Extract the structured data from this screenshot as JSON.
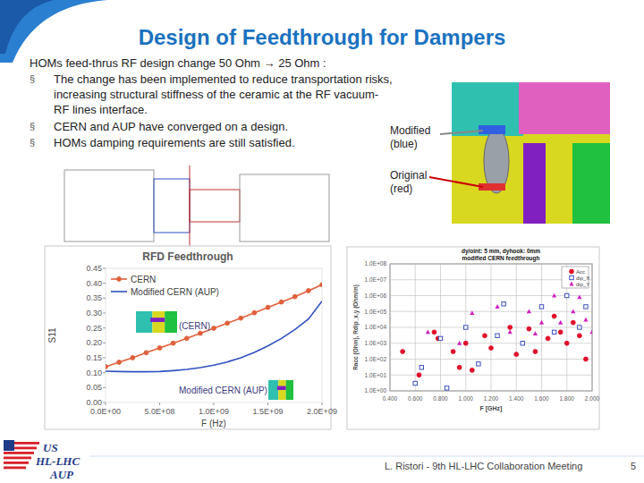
{
  "slide": {
    "title": "Design of Feedthrough for Dampers",
    "intro": "HOMs feed-thrus RF design change 50 Ohm → 25 Ohm :",
    "bullet": "§",
    "bullets": [
      "The change has been implemented to reduce transportation risks, increasing structural stiffness of the ceramic at the RF vacuum-RF lines interface.",
      "CERN and AUP have converged on a design.",
      "HOMs damping requirements are still satisfied."
    ],
    "figure_labels": [
      [
        "Modified",
        "(blue)"
      ],
      [
        "Original",
        "(red)"
      ]
    ],
    "logo": [
      "US",
      "HL-LHC",
      "AUP"
    ],
    "footer": "L. Ristori - 9th HL-LHC Collaboration Meeting",
    "page": 5
  },
  "chart_data": [
    {
      "type": "line",
      "title": "RFD Feedthrough",
      "x_label": "F (Hz)",
      "y_label": "S11",
      "x": [
        0,
        125000000,
        250000000,
        375000000,
        500000000,
        625000000,
        750000000,
        875000000,
        1000000000,
        1125000000,
        1250000000,
        1375000000,
        1500000000,
        1625000000,
        1750000000,
        1875000000,
        2000000000
      ],
      "xlim": [
        0,
        2000000000
      ],
      "xticks": [
        {
          "value": 0,
          "label": "0.0E+00"
        },
        {
          "value": 500000000,
          "label": "5.0E+08"
        },
        {
          "value": 1000000000,
          "label": "1.0E+09"
        },
        {
          "value": 1500000000,
          "label": "1.5E+09"
        },
        {
          "value": 2000000000,
          "label": "2.0E+09"
        }
      ],
      "ylim": [
        0,
        0.45
      ],
      "yticks": [
        {
          "value": 0,
          "label": "0.00"
        },
        {
          "value": 0.05,
          "label": "0.05"
        },
        {
          "value": 0.1,
          "label": "0.10"
        },
        {
          "value": 0.15,
          "label": "0.15"
        },
        {
          "value": 0.2,
          "label": "0.20"
        },
        {
          "value": 0.25,
          "label": "0.25"
        },
        {
          "value": 0.3,
          "label": "0.30"
        },
        {
          "value": 0.35,
          "label": "0.35"
        },
        {
          "value": 0.4,
          "label": "0.40"
        },
        {
          "value": 0.45,
          "label": "0.45"
        }
      ],
      "grid": false,
      "legend": "top-left",
      "series": [
        {
          "name": "CERN",
          "color": "#e0603c",
          "marker": "circle",
          "values": [
            0.12,
            0.135,
            0.15,
            0.167,
            0.183,
            0.199,
            0.215,
            0.232,
            0.249,
            0.266,
            0.283,
            0.301,
            0.319,
            0.337,
            0.355,
            0.375,
            0.395
          ]
        },
        {
          "name": "Modified CERN (AUP)",
          "color": "#3050c0",
          "marker": "none",
          "values": [
            0.105,
            0.104,
            0.103,
            0.103,
            0.104,
            0.107,
            0.111,
            0.117,
            0.125,
            0.136,
            0.15,
            0.168,
            0.19,
            0.215,
            0.245,
            0.28,
            0.34
          ]
        }
      ],
      "annotations": [
        "(CERN)",
        "Modified CERN (AUP)"
      ]
    },
    {
      "type": "scatter",
      "title": "dy/oint: 5 mm, dyhook: 0mm",
      "subtitle": "modified CERN feedthrough",
      "x_label": "F [GHz]",
      "y_label": "Racc (Ohm), Rdip_x,y (Ohm/m)",
      "log": "y",
      "grid": true,
      "legend": "top-right",
      "xlim": [
        0.4,
        2.0
      ],
      "xticks": [
        {
          "value": 0.4,
          "label": "0.400"
        },
        {
          "value": 0.6,
          "label": "0.600"
        },
        {
          "value": 0.8,
          "label": "0.800"
        },
        {
          "value": 1.0,
          "label": "1.000"
        },
        {
          "value": 1.2,
          "label": "1.200"
        },
        {
          "value": 1.4,
          "label": "1.400"
        },
        {
          "value": 1.6,
          "label": "1.600"
        },
        {
          "value": 1.8,
          "label": "1.800"
        },
        {
          "value": 2.0,
          "label": "2.000"
        }
      ],
      "ylim": [
        1,
        100000000
      ],
      "yticks": [
        {
          "value": 1,
          "label": "1.0E+00"
        },
        {
          "value": 10,
          "label": "1.0E+01"
        },
        {
          "value": 100,
          "label": "1.0E+02"
        },
        {
          "value": 1000,
          "label": "1.0E+03"
        },
        {
          "value": 10000,
          "label": "1.0E+04"
        },
        {
          "value": 100000,
          "label": "1.0E+05"
        },
        {
          "value": 1000000,
          "label": "1.0E+06"
        },
        {
          "value": 10000000,
          "label": "1.0E+07"
        },
        {
          "value": 100000000,
          "label": "1.0E+08"
        }
      ],
      "series": [
        {
          "name": "Acc",
          "color": "#e0102a",
          "marker": "circle",
          "x": [
            0.5,
            0.63,
            0.75,
            0.78,
            0.9,
            0.95,
            1.0,
            1.05,
            1.15,
            1.2,
            1.35,
            1.4,
            1.5,
            1.55,
            1.65,
            1.7,
            1.75,
            1.8,
            1.85,
            1.9,
            1.95
          ],
          "values": [
            300,
            10,
            5000,
            2000,
            300,
            30,
            1000,
            20,
            3000,
            500,
            10000,
            200,
            8000,
            300,
            2000,
            50000,
            5000,
            1000,
            20000,
            3000,
            100
          ]
        },
        {
          "name": "dip_X",
          "color": "#3a4fc0",
          "marker": "square",
          "x": [
            0.6,
            0.65,
            0.8,
            0.85,
            1.0,
            1.1,
            1.25,
            1.3,
            1.45,
            1.6,
            1.7,
            1.8,
            1.9,
            1.95
          ],
          "values": [
            3,
            30,
            2000,
            1.5,
            10000,
            50,
            3000,
            300000,
            1000,
            200000,
            5000,
            1000000,
            10000,
            200000
          ]
        },
        {
          "name": "dip_Y",
          "color": "#d020c0",
          "marker": "triangle",
          "x": [
            0.7,
            0.95,
            1.05,
            1.25,
            1.35,
            1.5,
            1.55,
            1.6,
            1.7,
            1.75,
            1.85,
            1.9,
            1.95,
            2.0
          ],
          "values": [
            5000,
            1000,
            80000,
            200000,
            5000,
            100000,
            4000,
            20000,
            1000000,
            20000,
            100000,
            800000,
            30000,
            5000
          ]
        }
      ]
    }
  ]
}
